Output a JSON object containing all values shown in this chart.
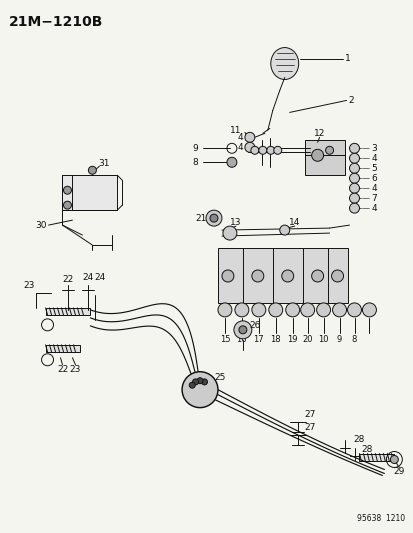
{
  "title": "21M−1210B",
  "footer": "95638  1210",
  "bg_color": "#f5f5f0",
  "fg_color": "#111111",
  "title_fontsize": 10,
  "label_fontsize": 6.5,
  "fig_width": 4.14,
  "fig_height": 5.33,
  "dpi": 100
}
